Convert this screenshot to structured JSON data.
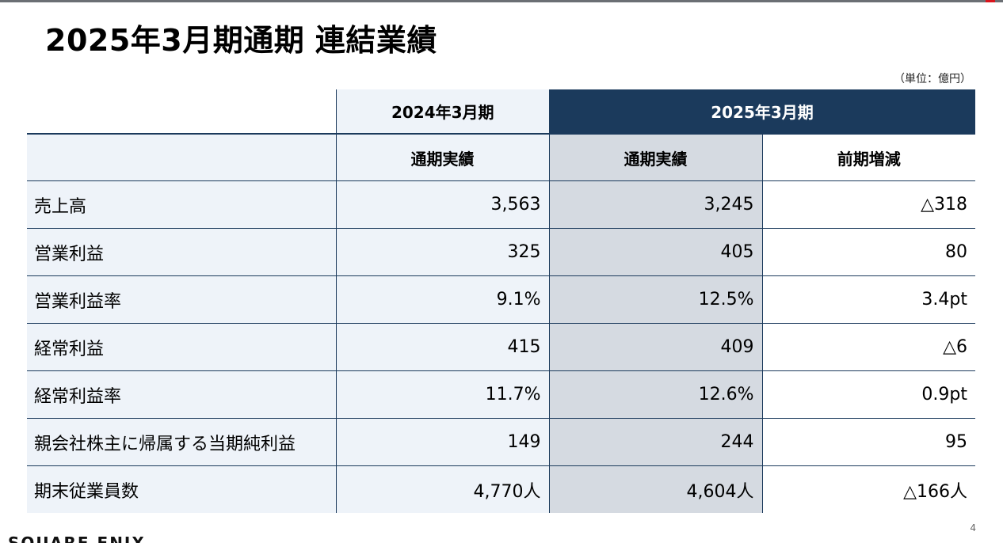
{
  "title": "2025年3月期通期 連結業績",
  "unit_note": "（単位：億円）",
  "header": {
    "prev_period": "2024年3月期",
    "cur_period": "2025年3月期",
    "prev_sub": "通期実績",
    "cur_sub": "通期実績",
    "diff_sub": "前期増減"
  },
  "rows": [
    {
      "label": "売上高",
      "prev": "3,563",
      "cur": "3,245",
      "diff": "△318"
    },
    {
      "label": "営業利益",
      "prev": "325",
      "cur": "405",
      "diff": "80"
    },
    {
      "label": "営業利益率",
      "prev": "9.1%",
      "cur": "12.5%",
      "diff": "3.4pt"
    },
    {
      "label": "経常利益",
      "prev": "415",
      "cur": "409",
      "diff": "△6"
    },
    {
      "label": "経常利益率",
      "prev": "11.7%",
      "cur": "12.6%",
      "diff": "0.9pt"
    },
    {
      "label": "親会社株主に帰属する当期純利益",
      "prev": "149",
      "cur": "244",
      "diff": "95"
    },
    {
      "label": "期末従業員数",
      "prev": "4,770人",
      "cur": "4,604人",
      "diff": "△166人"
    }
  ],
  "page_number": "4",
  "logo_text": "SQUARE ENIX",
  "colors": {
    "navy": "#1b3a5c",
    "light_blue": "#eef3f9",
    "gray": "#d5dae1",
    "accent_red": "#d9141c"
  }
}
